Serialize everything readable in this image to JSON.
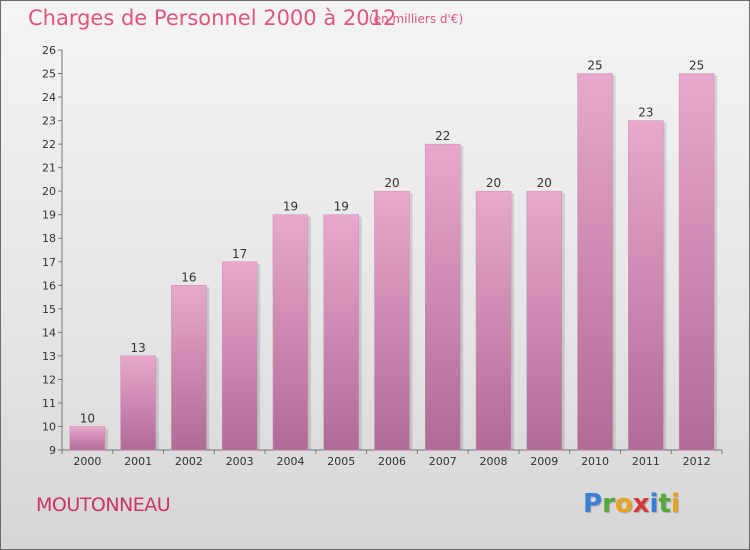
{
  "title": "Charges de Personnel 2000 à 2012",
  "subtitle": "(en milliers d'€)",
  "place": "MOUTONNEAU",
  "logo": {
    "letters": [
      "P",
      "r",
      "o",
      "x",
      "i",
      "t",
      "i"
    ],
    "colors": [
      "#3a7fd6",
      "#56a83a",
      "#e8a21c",
      "#d63a3a",
      "#3a7fd6",
      "#56a83a",
      "#e8a21c"
    ]
  },
  "colors": {
    "bar_top": "#e8a8cc",
    "bar_bottom": "#b06a96",
    "accent": "#e0557c"
  },
  "chart_data": {
    "type": "bar",
    "title": "Charges de Personnel 2000 à 2012",
    "subtitle": "(en milliers d'€)",
    "categories": [
      "2000",
      "2001",
      "2002",
      "2003",
      "2004",
      "2005",
      "2006",
      "2007",
      "2008",
      "2009",
      "2010",
      "2011",
      "2012"
    ],
    "values": [
      10,
      13,
      16,
      17,
      19,
      19,
      20,
      22,
      20,
      20,
      25,
      23,
      25
    ],
    "ylim": [
      9,
      26
    ],
    "yticks": [
      9,
      10,
      11,
      12,
      13,
      14,
      15,
      16,
      17,
      18,
      19,
      20,
      21,
      22,
      23,
      24,
      25,
      26
    ],
    "grid": false,
    "legend": "none"
  }
}
